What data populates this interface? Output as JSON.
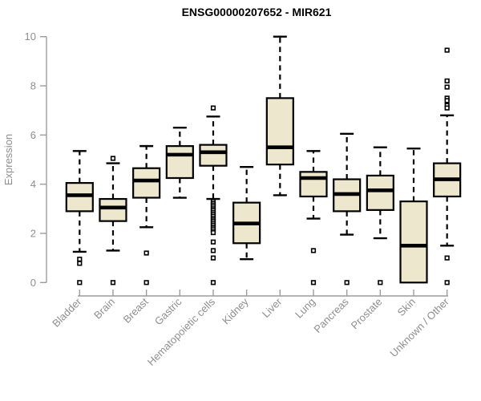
{
  "title": "ENSG00000207652 - MIR621",
  "colors": {
    "box_fill": "#ece7cd",
    "box_border": "#000000",
    "median": "#000000",
    "whisker": "#000000",
    "outlier_fill": "#ffffff",
    "outlier_border": "#000000",
    "axis": "#9c9c9c",
    "tick_label": "#8e8e8e",
    "title_color": "#000000",
    "background": "#ffffff"
  },
  "chart_data": {
    "type": "boxplot",
    "title": "ENSG00000207652 - MIR621",
    "xlabel": "",
    "ylabel": "Expression",
    "ylim": [
      0,
      10
    ],
    "yticks": [
      0,
      2,
      4,
      6,
      8,
      10
    ],
    "grid": false,
    "categories": [
      "Bladder",
      "Brain",
      "Breast",
      "Gastric",
      "Hematopoietic cells",
      "Kidney",
      "Liver",
      "Lung",
      "Pancreas",
      "Prostate",
      "Skin",
      "Unknown / Other"
    ],
    "series": [
      {
        "name": "Bladder",
        "whisker_low": 1.25,
        "q1": 2.9,
        "median": 3.55,
        "q3": 4.05,
        "whisker_high": 5.35,
        "outliers": [
          0.95,
          0.78,
          0
        ]
      },
      {
        "name": "Brain",
        "whisker_low": 1.3,
        "q1": 2.5,
        "median": 3.05,
        "q3": 3.4,
        "whisker_high": 4.85,
        "outliers": [
          5.05,
          0
        ]
      },
      {
        "name": "Breast",
        "whisker_low": 2.25,
        "q1": 3.45,
        "median": 4.15,
        "q3": 4.65,
        "whisker_high": 5.55,
        "outliers": [
          1.2,
          0
        ]
      },
      {
        "name": "Gastric",
        "whisker_low": 3.45,
        "q1": 4.25,
        "median": 5.2,
        "q3": 5.55,
        "whisker_high": 6.3,
        "outliers": []
      },
      {
        "name": "Hematopoietic cells",
        "whisker_low": 3.4,
        "q1": 4.75,
        "median": 5.3,
        "q3": 5.6,
        "whisker_high": 6.75,
        "outliers": [
          7.1,
          3.3,
          3.22,
          3.15,
          3.08,
          3.0,
          2.93,
          2.85,
          2.78,
          2.7,
          2.62,
          2.55,
          2.48,
          2.4,
          2.33,
          2.25,
          2.18,
          2.1,
          2.03,
          1.65,
          1.3,
          1.0,
          0
        ]
      },
      {
        "name": "Kidney",
        "whisker_low": 0.95,
        "q1": 1.6,
        "median": 2.4,
        "q3": 3.25,
        "whisker_high": 4.7,
        "outliers": []
      },
      {
        "name": "Liver",
        "whisker_low": 3.55,
        "q1": 4.8,
        "median": 5.5,
        "q3": 7.5,
        "whisker_high": 10.0,
        "outliers": []
      },
      {
        "name": "Lung",
        "whisker_low": 2.6,
        "q1": 3.5,
        "median": 4.25,
        "q3": 4.5,
        "whisker_high": 5.35,
        "outliers": [
          1.3,
          0
        ]
      },
      {
        "name": "Pancreas",
        "whisker_low": 1.95,
        "q1": 2.9,
        "median": 3.6,
        "q3": 4.2,
        "whisker_high": 6.05,
        "outliers": [
          0
        ]
      },
      {
        "name": "Prostate",
        "whisker_low": 1.8,
        "q1": 2.95,
        "median": 3.75,
        "q3": 4.35,
        "whisker_high": 5.5,
        "outliers": [
          0
        ]
      },
      {
        "name": "Skin",
        "whisker_low": 0,
        "q1": 0,
        "median": 1.5,
        "q3": 3.3,
        "whisker_high": 5.45,
        "outliers": []
      },
      {
        "name": "Unknown / Other",
        "whisker_low": 1.5,
        "q1": 3.5,
        "median": 4.2,
        "q3": 4.85,
        "whisker_high": 6.8,
        "outliers": [
          9.45,
          8.2,
          7.95,
          7.5,
          7.4,
          7.2,
          7.1,
          1.0,
          0
        ]
      }
    ]
  }
}
